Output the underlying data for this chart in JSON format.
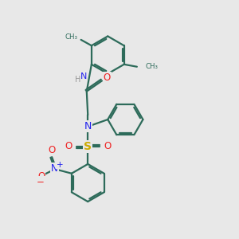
{
  "bg_color": "#e8e8e8",
  "bond_color": "#2d6b5a",
  "N_color": "#2222ee",
  "O_color": "#ee2222",
  "S_color": "#ccaa00",
  "lw": 1.6,
  "figsize": [
    3.0,
    3.0
  ],
  "dpi": 100,
  "xlim": [
    0,
    10
  ],
  "ylim": [
    0,
    10
  ],
  "ring_r": 0.72,
  "dbl_off": 0.07
}
